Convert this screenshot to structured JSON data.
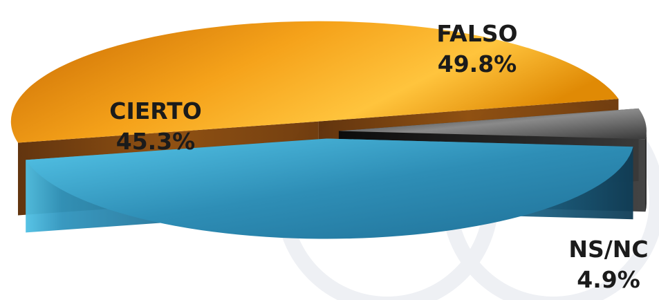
{
  "chart_data": {
    "type": "pie",
    "title": "",
    "slices": [
      {
        "label": "FALSO",
        "value": 49.8,
        "value_label": "49.8%",
        "color": "#e8920d"
      },
      {
        "label": "CIERTO",
        "value": 45.3,
        "value_label": "45.3%",
        "color": "#2f93bd"
      },
      {
        "label": "NS/NC",
        "value": 4.9,
        "value_label": "4.9%",
        "color": "#3a3a3a"
      }
    ],
    "style": "3d-exploded"
  }
}
